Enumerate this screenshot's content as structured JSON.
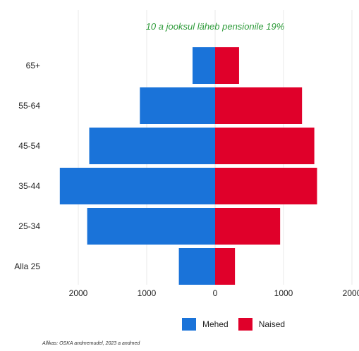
{
  "chart_data": {
    "type": "bar",
    "orientation": "horizontal-population-pyramid",
    "annotation": "10 a jooksul läheb pensionile 19%",
    "annotation_color": "#2e9b3a",
    "categories": [
      "65+",
      "55-64",
      "45-54",
      "35-44",
      "25-34",
      "Alla 25"
    ],
    "series": [
      {
        "name": "Mehed",
        "color": "#1a73d9",
        "values": [
          330,
          1100,
          1840,
          2270,
          1870,
          530
        ]
      },
      {
        "name": "Naised",
        "color": "#e0002a",
        "values": [
          350,
          1270,
          1450,
          1490,
          950,
          290
        ]
      }
    ],
    "x_ticks": [
      {
        "value": -2000,
        "label": "2000"
      },
      {
        "value": -1000,
        "label": "1000"
      },
      {
        "value": 0,
        "label": "0"
      },
      {
        "value": 1000,
        "label": "1000"
      },
      {
        "value": 2000,
        "label": "2000"
      }
    ],
    "xlim": [
      -2000,
      2000
    ],
    "grid": true,
    "legend_placement": "bottom",
    "source": "Allikas: OSKA andmemudel, 2023 a andmed"
  }
}
